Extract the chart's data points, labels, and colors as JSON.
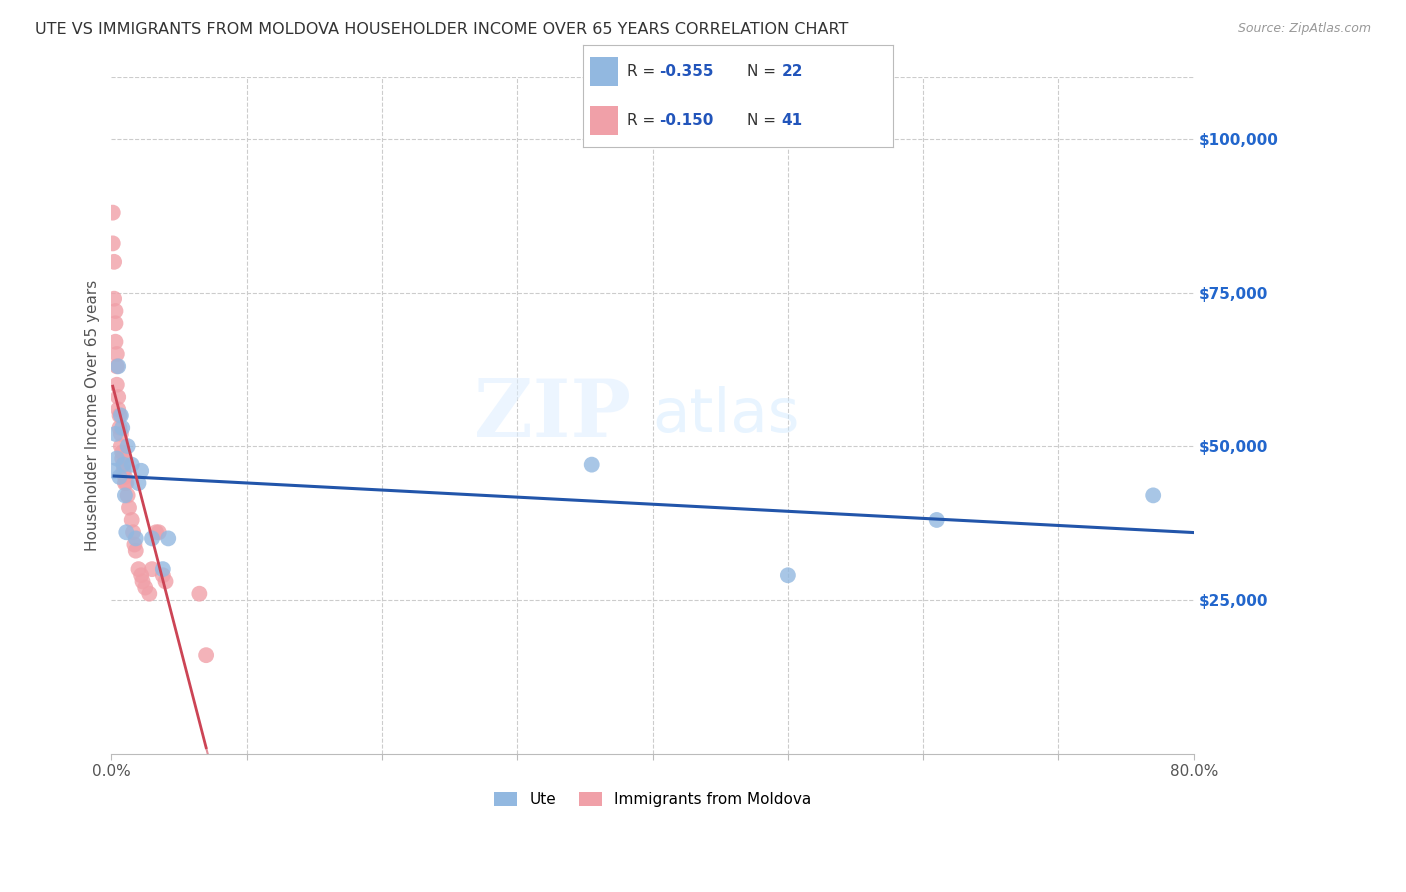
{
  "title": "UTE VS IMMIGRANTS FROM MOLDOVA HOUSEHOLDER INCOME OVER 65 YEARS CORRELATION CHART",
  "source": "Source: ZipAtlas.com",
  "ylabel": "Householder Income Over 65 years",
  "xlim": [
    0.0,
    0.8
  ],
  "ylim": [
    0,
    110000
  ],
  "yticks_right": [
    25000,
    50000,
    75000,
    100000
  ],
  "ytick_labels_right": [
    "$25,000",
    "$50,000",
    "$75,000",
    "$100,000"
  ],
  "ute_color": "#92b8e0",
  "mol_color": "#f0a0a8",
  "ute_line_color": "#2255aa",
  "mol_line_color": "#cc4455",
  "watermark_zip": "ZIP",
  "watermark_atlas": "atlas",
  "background_color": "#ffffff",
  "grid_color": "#cccccc",
  "ute_x": [
    0.002,
    0.003,
    0.004,
    0.005,
    0.006,
    0.007,
    0.008,
    0.009,
    0.01,
    0.011,
    0.012,
    0.015,
    0.018,
    0.02,
    0.022,
    0.03,
    0.038,
    0.042,
    0.355,
    0.5,
    0.61,
    0.77
  ],
  "ute_y": [
    46000,
    52000,
    48000,
    63000,
    45000,
    55000,
    53000,
    47000,
    42000,
    36000,
    50000,
    47000,
    35000,
    44000,
    46000,
    35000,
    30000,
    35000,
    47000,
    29000,
    38000,
    42000
  ],
  "mol_x": [
    0.001,
    0.001,
    0.002,
    0.002,
    0.003,
    0.003,
    0.003,
    0.004,
    0.004,
    0.004,
    0.005,
    0.005,
    0.006,
    0.006,
    0.007,
    0.007,
    0.008,
    0.008,
    0.009,
    0.009,
    0.01,
    0.01,
    0.011,
    0.012,
    0.013,
    0.015,
    0.016,
    0.017,
    0.018,
    0.02,
    0.022,
    0.023,
    0.025,
    0.028,
    0.03,
    0.033,
    0.035,
    0.038,
    0.04,
    0.065,
    0.07
  ],
  "mol_y": [
    88000,
    83000,
    80000,
    74000,
    72000,
    70000,
    67000,
    65000,
    63000,
    60000,
    58000,
    56000,
    55000,
    53000,
    52000,
    50000,
    49000,
    48000,
    47000,
    46000,
    45000,
    44000,
    44000,
    42000,
    40000,
    38000,
    36000,
    34000,
    33000,
    30000,
    29000,
    28000,
    27000,
    26000,
    30000,
    36000,
    36000,
    29000,
    28000,
    26000,
    16000
  ],
  "legend_r1": "R = ",
  "legend_v1": "-0.355",
  "legend_n1": "N = ",
  "legend_nv1": "22",
  "legend_r2": "R = ",
  "legend_v2": "-0.150",
  "legend_n2": "N = ",
  "legend_nv2": "41",
  "legend_text_color": "#2255bb",
  "bottom_legend": [
    "Ute",
    "Immigrants from Moldova"
  ]
}
